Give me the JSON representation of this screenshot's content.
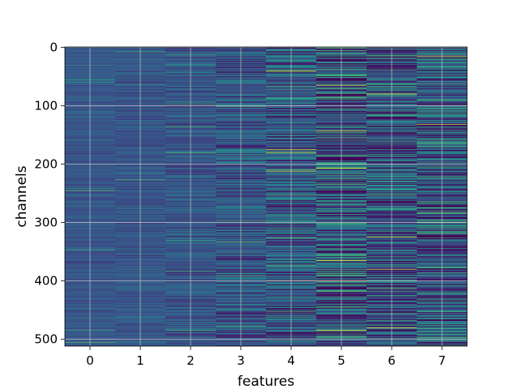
{
  "chart_data": {
    "type": "heatmap",
    "title": "",
    "xlabel": "features",
    "ylabel": "channels",
    "x_categories": [
      "0",
      "1",
      "2",
      "3",
      "4",
      "5",
      "6",
      "7"
    ],
    "x_ticks": [
      0,
      1,
      2,
      3,
      4,
      5,
      6,
      7
    ],
    "y_ticks": [
      0,
      100,
      200,
      300,
      400,
      500
    ],
    "y_range": [
      0,
      511
    ],
    "rows_per_feature": 512,
    "y_inverted": true,
    "grid": true,
    "colormap": "viridis",
    "colormap_stops": [
      "#440154",
      "#3b528b",
      "#21918c",
      "#5ec962",
      "#fde725"
    ],
    "feature_contrast": [
      0.18,
      0.22,
      0.3,
      0.45,
      0.6,
      0.85,
      0.75,
      0.8
    ],
    "notable_bright_rows": [
      {
        "feature": 4,
        "channels": [
          40,
          175,
          180,
          212,
          400
        ]
      },
      {
        "feature": 5,
        "channels": [
          65,
          143,
          207,
          365,
          400,
          485
        ]
      },
      {
        "feature": 6,
        "channels": [
          80,
          325,
          380,
          480
        ]
      },
      {
        "feature": 7,
        "channels": [
          15,
          132,
          300
        ]
      }
    ]
  }
}
